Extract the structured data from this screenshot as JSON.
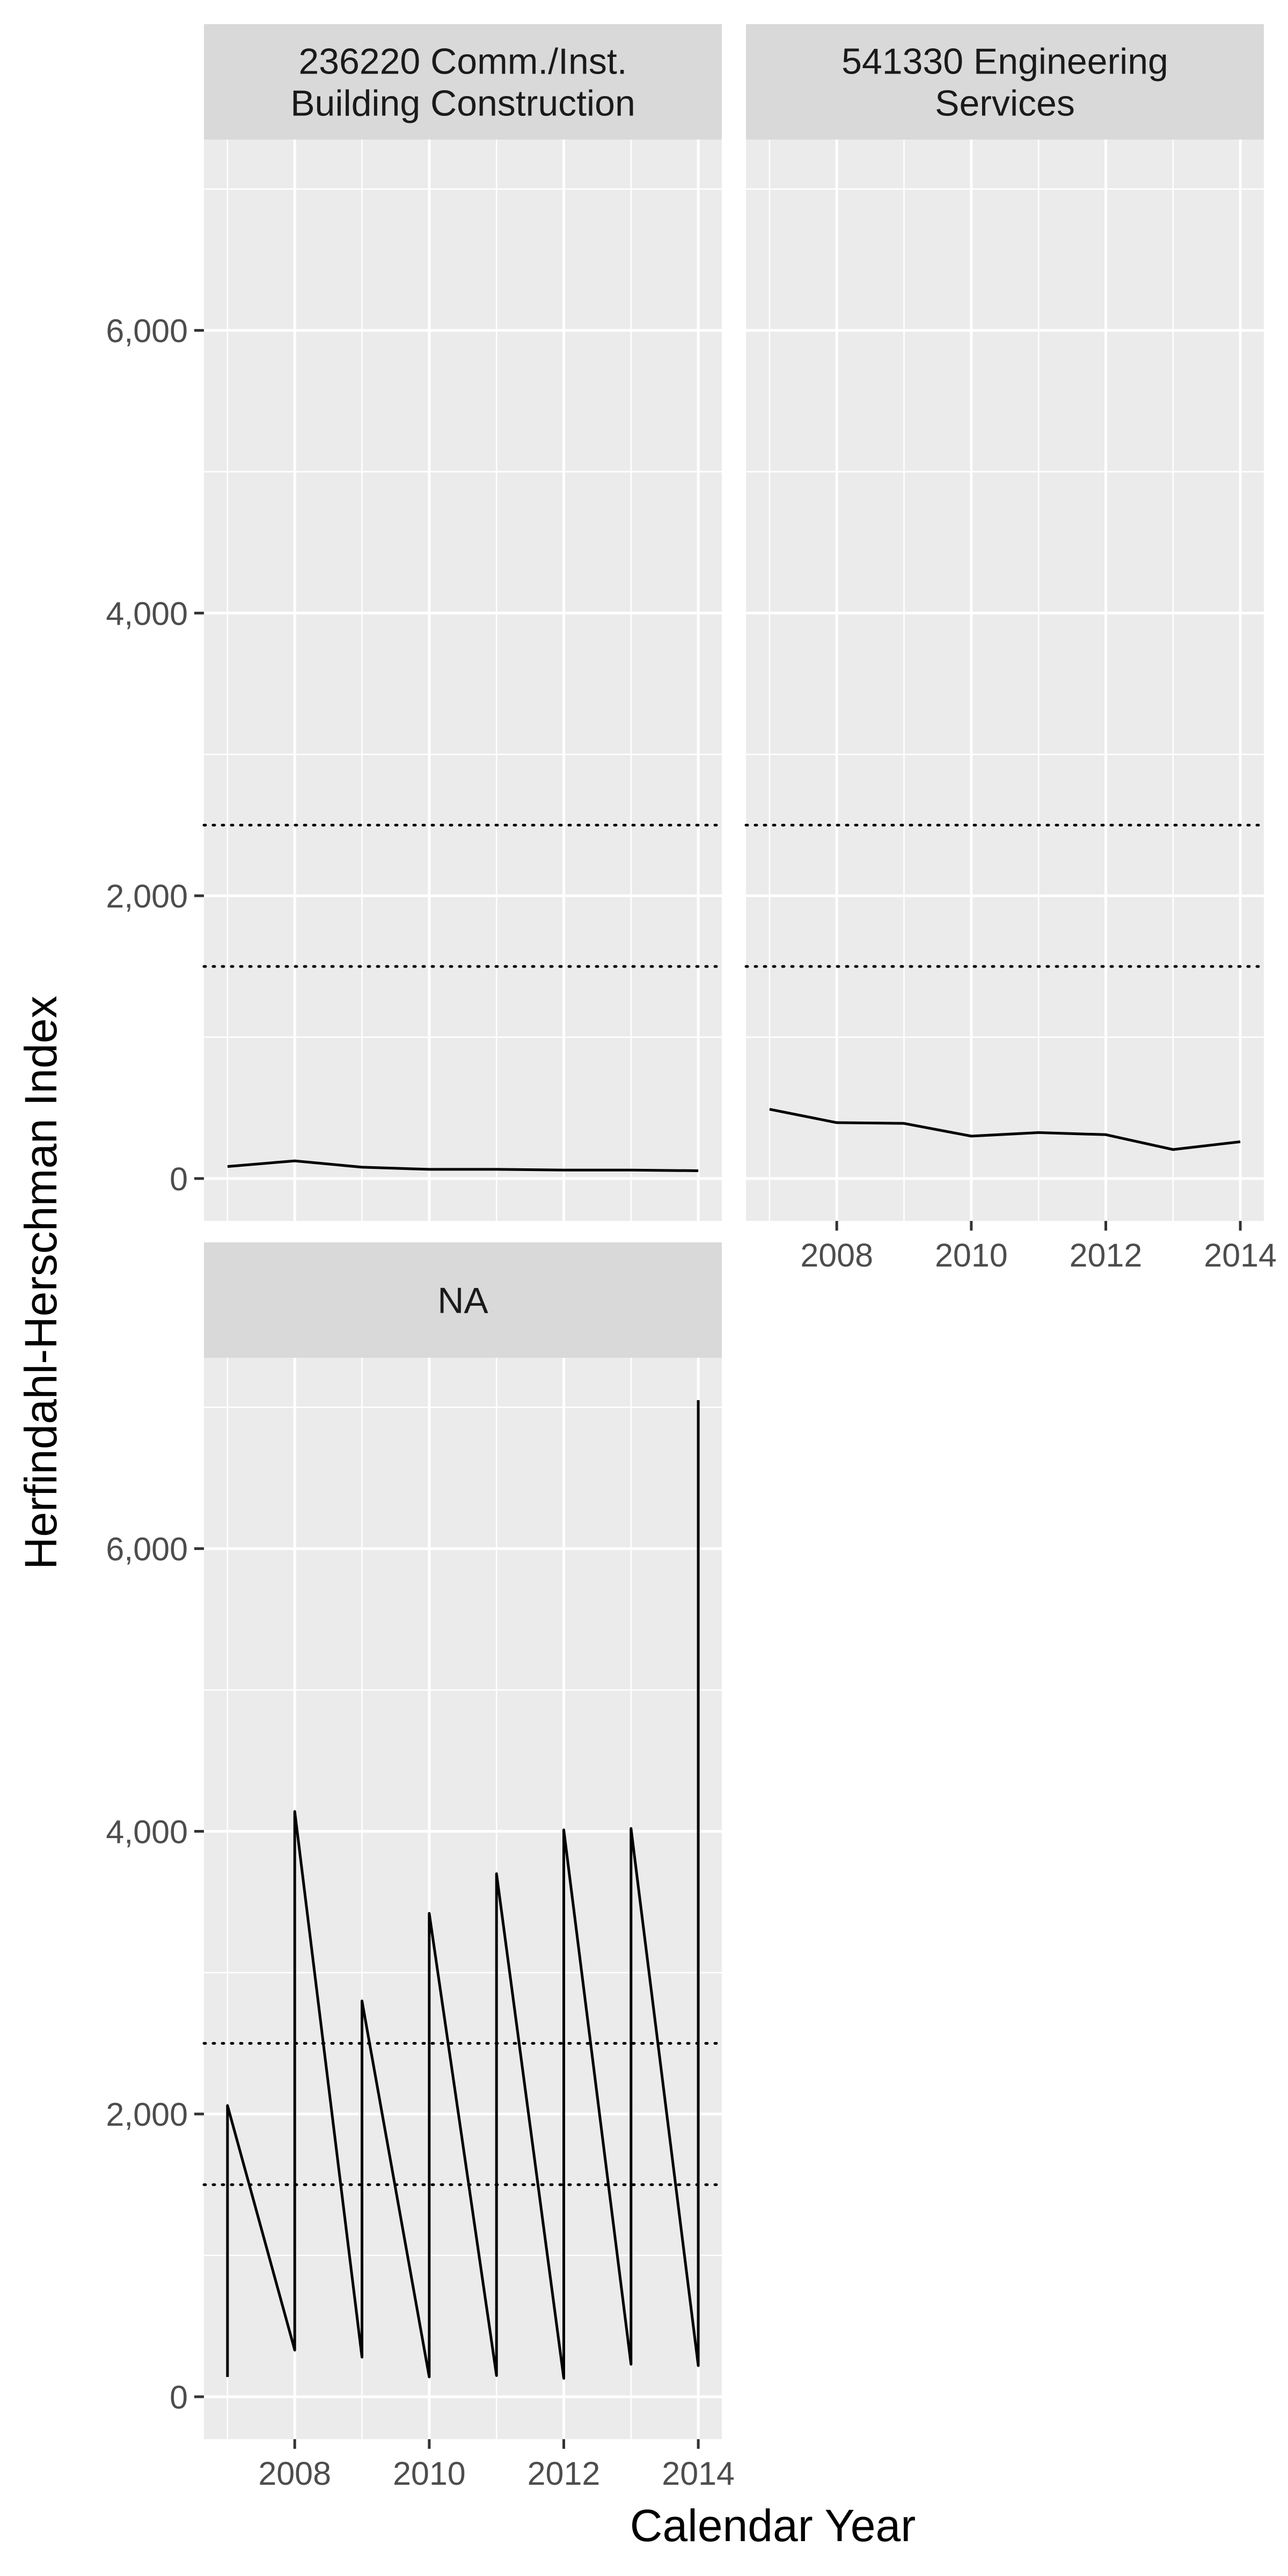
{
  "chart_data": {
    "type": "line",
    "xlabel": "Calendar Year",
    "ylabel": "Herfindahl-Herschman Index",
    "xlim": [
      2006.65,
      2014.35
    ],
    "ylim": [
      -300,
      7350
    ],
    "x_ticks": [
      2008,
      2010,
      2012,
      2014
    ],
    "y_ticks": [
      0,
      2000,
      4000,
      6000
    ],
    "y_tick_labels": [
      "0",
      "2,000",
      "4,000",
      "6,000"
    ],
    "grid": true,
    "reference_lines": [
      1500,
      2500
    ],
    "facets": [
      {
        "title_lines": [
          "236220 Comm./Inst.",
          "Building Construction"
        ],
        "series": [
          {
            "x": [
              2007,
              2008,
              2009,
              2010,
              2011,
              2012,
              2013,
              2014
            ],
            "y": [
              85,
              125,
              80,
              65,
              65,
              60,
              60,
              55
            ]
          }
        ]
      },
      {
        "title_lines": [
          "541330 Engineering",
          "Services"
        ],
        "series": [
          {
            "x": [
              2007,
              2008,
              2009,
              2010,
              2011,
              2012,
              2013,
              2014
            ],
            "y": [
              490,
              395,
              390,
              300,
              325,
              310,
              205,
              260
            ]
          }
        ]
      },
      {
        "title_lines": [
          "NA"
        ],
        "series": [
          {
            "x": [
              2007,
              2007,
              2008,
              2008,
              2009,
              2009,
              2010,
              2010,
              2011,
              2011,
              2012,
              2012,
              2013,
              2013,
              2014,
              2014
            ],
            "y": [
              140,
              2060,
              330,
              4140,
              280,
              2800,
              140,
              3420,
              150,
              3700,
              130,
              4010,
              230,
              4020,
              220,
              7050
            ]
          }
        ]
      }
    ]
  }
}
